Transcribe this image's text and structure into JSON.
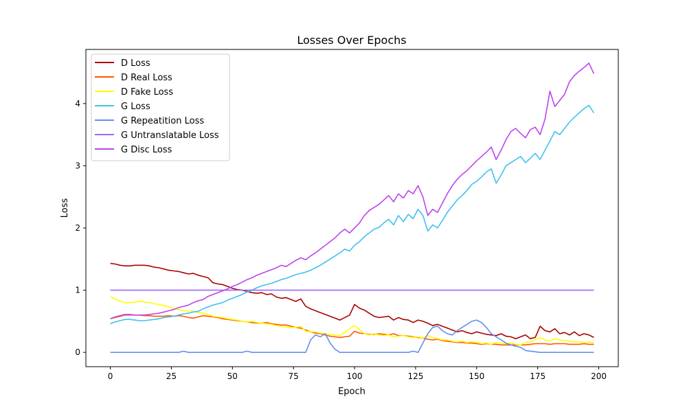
{
  "chart_data": {
    "type": "line",
    "title": "Losses Over Epochs",
    "xlabel": "Epoch",
    "ylabel": "Loss",
    "xlim": [
      -10,
      208
    ],
    "ylim": [
      -0.23,
      4.87
    ],
    "xticks": [
      0,
      25,
      50,
      75,
      100,
      125,
      150,
      175,
      200
    ],
    "yticks": [
      0,
      1,
      2,
      3,
      4
    ],
    "grid": false,
    "legend_position": "top-left",
    "x": [
      0,
      2,
      4,
      6,
      8,
      10,
      12,
      14,
      16,
      18,
      20,
      22,
      24,
      26,
      28,
      30,
      32,
      34,
      36,
      38,
      40,
      42,
      44,
      46,
      48,
      50,
      52,
      54,
      56,
      58,
      60,
      62,
      64,
      66,
      68,
      70,
      72,
      74,
      76,
      78,
      80,
      82,
      84,
      86,
      88,
      90,
      92,
      94,
      96,
      98,
      100,
      102,
      104,
      106,
      108,
      110,
      112,
      114,
      116,
      118,
      120,
      122,
      124,
      126,
      128,
      130,
      132,
      134,
      136,
      138,
      140,
      142,
      144,
      146,
      148,
      150,
      152,
      154,
      156,
      158,
      160,
      162,
      164,
      166,
      168,
      170,
      172,
      174,
      176,
      178,
      180,
      182,
      184,
      186,
      188,
      190,
      192,
      194,
      196,
      198
    ],
    "series": [
      {
        "name": "D Loss",
        "color": "#aa0000",
        "values": [
          1.43,
          1.42,
          1.4,
          1.39,
          1.39,
          1.4,
          1.4,
          1.4,
          1.39,
          1.37,
          1.36,
          1.34,
          1.32,
          1.31,
          1.3,
          1.28,
          1.26,
          1.27,
          1.24,
          1.22,
          1.2,
          1.12,
          1.1,
          1.09,
          1.06,
          1.03,
          1.01,
          1.0,
          0.98,
          0.96,
          0.95,
          0.96,
          0.93,
          0.94,
          0.89,
          0.87,
          0.88,
          0.85,
          0.82,
          0.86,
          0.74,
          0.7,
          0.67,
          0.64,
          0.61,
          0.58,
          0.55,
          0.52,
          0.56,
          0.6,
          0.77,
          0.71,
          0.68,
          0.63,
          0.58,
          0.56,
          0.57,
          0.58,
          0.52,
          0.56,
          0.53,
          0.52,
          0.48,
          0.52,
          0.5,
          0.47,
          0.43,
          0.45,
          0.42,
          0.39,
          0.36,
          0.33,
          0.35,
          0.32,
          0.3,
          0.33,
          0.31,
          0.29,
          0.28,
          0.27,
          0.3,
          0.26,
          0.25,
          0.22,
          0.25,
          0.28,
          0.22,
          0.24,
          0.42,
          0.35,
          0.33,
          0.38,
          0.3,
          0.32,
          0.28,
          0.33,
          0.27,
          0.3,
          0.28,
          0.24
        ]
      },
      {
        "name": "D Real Loss",
        "color": "#ff5500",
        "values": [
          0.54,
          0.56,
          0.58,
          0.6,
          0.6,
          0.6,
          0.6,
          0.59,
          0.59,
          0.58,
          0.58,
          0.58,
          0.59,
          0.58,
          0.59,
          0.58,
          0.56,
          0.55,
          0.57,
          0.59,
          0.58,
          0.57,
          0.56,
          0.54,
          0.53,
          0.52,
          0.51,
          0.5,
          0.49,
          0.48,
          0.47,
          0.47,
          0.48,
          0.46,
          0.45,
          0.44,
          0.44,
          0.42,
          0.4,
          0.39,
          0.36,
          0.33,
          0.31,
          0.3,
          0.28,
          0.26,
          0.25,
          0.24,
          0.25,
          0.26,
          0.34,
          0.31,
          0.3,
          0.29,
          0.29,
          0.3,
          0.29,
          0.28,
          0.3,
          0.27,
          0.27,
          0.26,
          0.25,
          0.24,
          0.23,
          0.21,
          0.2,
          0.21,
          0.19,
          0.18,
          0.17,
          0.16,
          0.16,
          0.15,
          0.15,
          0.14,
          0.13,
          0.14,
          0.13,
          0.13,
          0.12,
          0.12,
          0.12,
          0.12,
          0.12,
          0.12,
          0.13,
          0.14,
          0.14,
          0.14,
          0.13,
          0.14,
          0.14,
          0.14,
          0.13,
          0.13,
          0.13,
          0.14,
          0.13,
          0.13
        ]
      },
      {
        "name": "D Fake Loss",
        "color": "#ffff00",
        "values": [
          0.89,
          0.86,
          0.82,
          0.8,
          0.8,
          0.81,
          0.82,
          0.81,
          0.8,
          0.78,
          0.77,
          0.75,
          0.73,
          0.71,
          0.69,
          0.67,
          0.67,
          0.66,
          0.64,
          0.63,
          0.61,
          0.58,
          0.57,
          0.56,
          0.54,
          0.53,
          0.52,
          0.5,
          0.49,
          0.5,
          0.48,
          0.47,
          0.46,
          0.45,
          0.43,
          0.42,
          0.41,
          0.4,
          0.4,
          0.42,
          0.34,
          0.33,
          0.33,
          0.31,
          0.3,
          0.29,
          0.28,
          0.27,
          0.32,
          0.38,
          0.43,
          0.37,
          0.3,
          0.28,
          0.3,
          0.28,
          0.27,
          0.28,
          0.25,
          0.26,
          0.27,
          0.25,
          0.24,
          0.25,
          0.23,
          0.27,
          0.24,
          0.22,
          0.2,
          0.2,
          0.18,
          0.17,
          0.18,
          0.16,
          0.17,
          0.16,
          0.14,
          0.15,
          0.13,
          0.16,
          0.15,
          0.14,
          0.15,
          0.13,
          0.12,
          0.16,
          0.17,
          0.2,
          0.24,
          0.2,
          0.18,
          0.22,
          0.2,
          0.19,
          0.18,
          0.17,
          0.17,
          0.16,
          0.17,
          0.16
        ]
      },
      {
        "name": "G Loss",
        "color": "#40c0f0",
        "values": [
          0.46,
          0.49,
          0.51,
          0.53,
          0.53,
          0.52,
          0.51,
          0.51,
          0.52,
          0.53,
          0.54,
          0.56,
          0.57,
          0.58,
          0.6,
          0.62,
          0.63,
          0.65,
          0.66,
          0.7,
          0.73,
          0.76,
          0.78,
          0.8,
          0.84,
          0.87,
          0.9,
          0.93,
          0.97,
          1.0,
          1.04,
          1.07,
          1.09,
          1.11,
          1.14,
          1.17,
          1.19,
          1.22,
          1.25,
          1.27,
          1.29,
          1.32,
          1.36,
          1.4,
          1.45,
          1.5,
          1.55,
          1.6,
          1.66,
          1.63,
          1.72,
          1.78,
          1.86,
          1.92,
          1.98,
          2.01,
          2.08,
          2.14,
          2.05,
          2.2,
          2.1,
          2.22,
          2.15,
          2.3,
          2.2,
          1.95,
          2.05,
          2.0,
          2.12,
          2.25,
          2.35,
          2.45,
          2.52,
          2.6,
          2.7,
          2.75,
          2.82,
          2.9,
          2.95,
          2.72,
          2.85,
          3.0,
          3.05,
          3.1,
          3.15,
          3.05,
          3.12,
          3.2,
          3.1,
          3.25,
          3.4,
          3.55,
          3.5,
          3.6,
          3.7,
          3.78,
          3.85,
          3.92,
          3.97,
          3.85
        ]
      },
      {
        "name": "G Repeatition Loss",
        "color": "#6090f0",
        "values": [
          0.0,
          0.0,
          0.0,
          0.0,
          0.0,
          0.0,
          0.0,
          0.0,
          0.0,
          0.0,
          0.0,
          0.0,
          0.0,
          0.0,
          0.0,
          0.02,
          0.0,
          0.0,
          0.0,
          0.0,
          0.0,
          0.0,
          0.0,
          0.0,
          0.0,
          0.0,
          0.0,
          0.0,
          0.02,
          0.0,
          0.0,
          0.0,
          0.0,
          0.0,
          0.0,
          0.0,
          0.0,
          0.0,
          0.0,
          0.0,
          0.0,
          0.2,
          0.28,
          0.25,
          0.3,
          0.15,
          0.05,
          0.0,
          0.0,
          0.0,
          0.0,
          0.0,
          0.0,
          0.0,
          0.0,
          0.0,
          0.0,
          0.0,
          0.0,
          0.0,
          0.0,
          0.0,
          0.02,
          0.0,
          0.15,
          0.3,
          0.4,
          0.42,
          0.35,
          0.3,
          0.28,
          0.35,
          0.4,
          0.45,
          0.5,
          0.52,
          0.48,
          0.4,
          0.3,
          0.25,
          0.2,
          0.15,
          0.12,
          0.1,
          0.08,
          0.03,
          0.02,
          0.01,
          0.0,
          0.0,
          0.0,
          0.0,
          0.0,
          0.0,
          0.0,
          0.0,
          0.0,
          0.0,
          0.0,
          0.0
        ]
      },
      {
        "name": "G Untranslatable Loss",
        "color": "#9966ff",
        "values": [
          1.0,
          1.0,
          1.0,
          1.0,
          1.0,
          1.0,
          1.0,
          1.0,
          1.0,
          1.0,
          1.0,
          1.0,
          1.0,
          1.0,
          1.0,
          1.0,
          1.0,
          1.0,
          1.0,
          1.0,
          1.0,
          1.0,
          1.0,
          1.0,
          1.0,
          1.0,
          1.0,
          1.0,
          1.0,
          1.0,
          1.0,
          1.0,
          1.0,
          1.0,
          1.0,
          1.0,
          1.0,
          1.0,
          1.0,
          1.0,
          1.0,
          1.0,
          1.0,
          1.0,
          1.0,
          1.0,
          1.0,
          1.0,
          1.0,
          1.0,
          1.0,
          1.0,
          1.0,
          1.0,
          1.0,
          1.0,
          1.0,
          1.0,
          1.0,
          1.0,
          1.0,
          1.0,
          1.0,
          1.0,
          1.0,
          1.0,
          1.0,
          1.0,
          1.0,
          1.0,
          1.0,
          1.0,
          1.0,
          1.0,
          1.0,
          1.0,
          1.0,
          1.0,
          1.0,
          1.0,
          1.0,
          1.0,
          1.0,
          1.0,
          1.0,
          1.0,
          1.0,
          1.0,
          1.0,
          1.0,
          1.0,
          1.0,
          1.0,
          1.0,
          1.0,
          1.0,
          1.0,
          1.0,
          1.0,
          1.0
        ]
      },
      {
        "name": "G Disc Loss",
        "color": "#bb44ee",
        "values": [
          0.54,
          0.57,
          0.59,
          0.61,
          0.61,
          0.6,
          0.6,
          0.6,
          0.61,
          0.62,
          0.63,
          0.65,
          0.67,
          0.69,
          0.72,
          0.74,
          0.76,
          0.8,
          0.83,
          0.85,
          0.9,
          0.93,
          0.96,
          0.99,
          1.02,
          1.06,
          1.09,
          1.13,
          1.17,
          1.2,
          1.24,
          1.27,
          1.3,
          1.33,
          1.36,
          1.4,
          1.38,
          1.43,
          1.48,
          1.52,
          1.49,
          1.55,
          1.6,
          1.66,
          1.72,
          1.78,
          1.84,
          1.92,
          1.98,
          1.92,
          2.0,
          2.08,
          2.2,
          2.28,
          2.33,
          2.38,
          2.45,
          2.52,
          2.42,
          2.55,
          2.48,
          2.6,
          2.55,
          2.68,
          2.5,
          2.2,
          2.3,
          2.25,
          2.4,
          2.55,
          2.68,
          2.78,
          2.86,
          2.92,
          3.0,
          3.08,
          3.15,
          3.22,
          3.3,
          3.1,
          3.25,
          3.42,
          3.55,
          3.6,
          3.52,
          3.45,
          3.58,
          3.62,
          3.5,
          3.75,
          4.2,
          3.95,
          4.05,
          4.15,
          4.35,
          4.45,
          4.52,
          4.58,
          4.65,
          4.48
        ]
      }
    ]
  }
}
